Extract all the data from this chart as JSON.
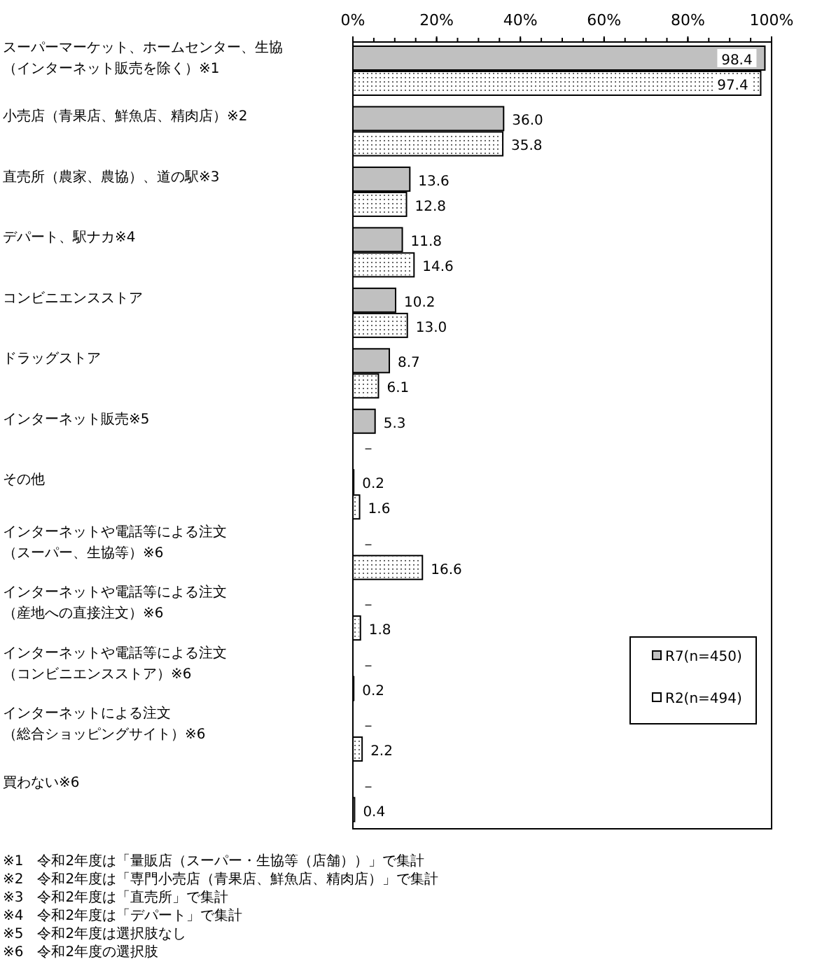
{
  "chart_data": {
    "type": "bar",
    "orientation": "horizontal",
    "categories": [
      "スーパーマーケット、ホームセンター、生協（インターネット販売を除く）※1",
      "小売店（青果店、鮮魚店、精肉店）※2",
      "直売所（農家、農協）、道の駅※3",
      "デパート、駅ナカ※4",
      "コンビニエンスストア",
      "ドラッグストア",
      "インターネット販売※5",
      "その他",
      "インターネットや電話等による注文（スーパー、生協等）※6",
      "インターネットや電話等による注文（産地への直接注文）※6",
      "インターネットや電話等による注文（コンビニエンスストア）※6",
      "インターネットによる注文（総合ショッピングサイト）※6",
      "買わない※6"
    ],
    "series": [
      {
        "name": "R7(n=450)",
        "color": "#c0c0c0",
        "values": [
          98.4,
          36.0,
          13.6,
          11.8,
          10.2,
          8.7,
          5.3,
          0.2,
          null,
          null,
          null,
          null,
          null
        ],
        "value_labels": [
          "98.4",
          "36.0",
          "13.6",
          "11.8",
          "10.2",
          "8.7",
          "5.3",
          "0.2",
          "－",
          "－",
          "－",
          "－",
          "－"
        ]
      },
      {
        "name": "R2(n=494)",
        "color": "#ffffff",
        "values": [
          97.4,
          35.8,
          12.8,
          14.6,
          13.0,
          6.1,
          null,
          1.6,
          16.6,
          1.8,
          0.2,
          2.2,
          0.4
        ],
        "value_labels": [
          "97.4",
          "35.8",
          "12.8",
          "14.6",
          "13.0",
          "6.1",
          "－",
          "1.6",
          "16.6",
          "1.8",
          "0.2",
          "2.2",
          "0.4"
        ]
      }
    ],
    "xlim": [
      0,
      100
    ],
    "xticks": [
      {
        "value": 0,
        "label": "0%"
      },
      {
        "value": 20,
        "label": "20%"
      },
      {
        "value": 40,
        "label": "40%"
      },
      {
        "value": 60,
        "label": "60%"
      },
      {
        "value": 80,
        "label": "80%"
      },
      {
        "value": 100,
        "label": "100%"
      }
    ],
    "legend": "bottom right",
    "grid": false,
    "annotations": [
      "※1　令和2年度は「量販店（スーパー・生協等（店舗））」で集計",
      "※2　令和2年度は「専門小売店（青果店、鮮魚店、精肉店）」で集計",
      "※3　令和2年度は「直売所」で集計",
      "※4　令和2年度は「デパート」で集計",
      "※5　令和2年度は選択肢なし",
      "※6　令和2年度の選択肢"
    ]
  }
}
